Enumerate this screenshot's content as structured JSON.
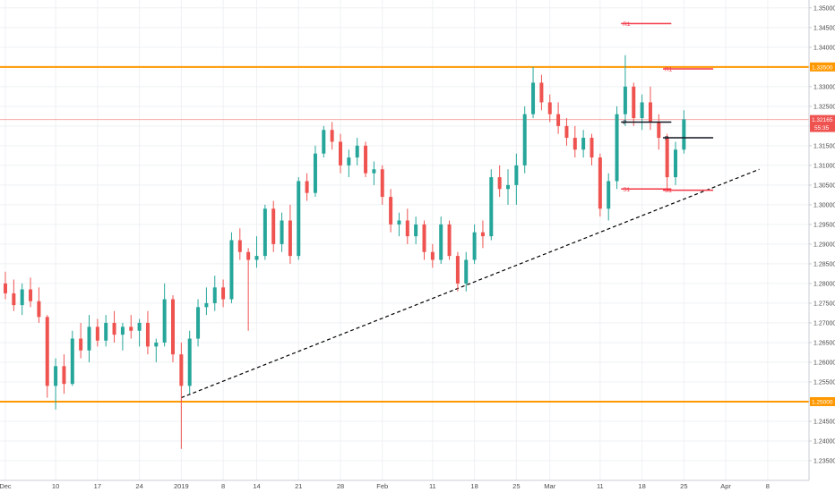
{
  "chart_data": {
    "type": "candlestick",
    "title": "",
    "xlabel": "",
    "ylabel": "",
    "ylim": [
      1.23,
      1.352
    ],
    "x_ticks": [
      {
        "label": "Dec",
        "i": 0
      },
      {
        "label": "10",
        "i": 6
      },
      {
        "label": "17",
        "i": 11
      },
      {
        "label": "24",
        "i": 16
      },
      {
        "label": "2019",
        "i": 21
      },
      {
        "label": "8",
        "i": 26
      },
      {
        "label": "14",
        "i": 30
      },
      {
        "label": "21",
        "i": 35
      },
      {
        "label": "28",
        "i": 40
      },
      {
        "label": "Feb",
        "i": 45
      },
      {
        "label": "11",
        "i": 51
      },
      {
        "label": "18",
        "i": 56
      },
      {
        "label": "25",
        "i": 61
      },
      {
        "label": "Mar",
        "i": 65
      },
      {
        "label": "11",
        "i": 71
      },
      {
        "label": "18",
        "i": 76
      },
      {
        "label": "25",
        "i": 81
      },
      {
        "label": "Apr",
        "i": 86
      },
      {
        "label": "8",
        "i": 91
      }
    ],
    "y_ticks": [
      "1.23500",
      "1.24000",
      "1.24500",
      "1.25000",
      "1.25500",
      "1.26000",
      "1.26500",
      "1.27000",
      "1.27500",
      "1.28000",
      "1.28500",
      "1.29000",
      "1.29500",
      "1.30000",
      "1.30500",
      "1.31000",
      "1.31500",
      "1.32000",
      "1.32500",
      "1.33000",
      "1.33500",
      "1.34000",
      "1.34500",
      "1.35000"
    ],
    "series": [
      {
        "type": "candlestick",
        "colors": {
          "up": "#26a69a",
          "down": "#ef5350"
        },
        "ohlc": [
          [
            1.28,
            1.283,
            1.276,
            1.2775
          ],
          [
            1.2775,
            1.281,
            1.273,
            1.2745
          ],
          [
            1.2745,
            1.28,
            1.272,
            1.2785
          ],
          [
            1.2785,
            1.2815,
            1.274,
            1.2755
          ],
          [
            1.2755,
            1.279,
            1.27,
            1.2715
          ],
          [
            1.2715,
            1.272,
            1.251,
            1.254
          ],
          [
            1.254,
            1.261,
            1.248,
            1.259
          ],
          [
            1.259,
            1.262,
            1.252,
            1.2545
          ],
          [
            1.2545,
            1.268,
            1.254,
            1.266
          ],
          [
            1.266,
            1.27,
            1.261,
            1.263
          ],
          [
            1.263,
            1.272,
            1.26,
            1.269
          ],
          [
            1.269,
            1.271,
            1.264,
            1.2655
          ],
          [
            1.2655,
            1.272,
            1.264,
            1.27
          ],
          [
            1.27,
            1.273,
            1.265,
            1.267
          ],
          [
            1.267,
            1.27,
            1.263,
            1.269
          ],
          [
            1.269,
            1.272,
            1.266,
            1.268
          ],
          [
            1.268,
            1.271,
            1.264,
            1.27
          ],
          [
            1.27,
            1.273,
            1.262,
            1.264
          ],
          [
            1.264,
            1.266,
            1.26,
            1.265
          ],
          [
            1.265,
            1.28,
            1.264,
            1.276
          ],
          [
            1.276,
            1.277,
            1.26,
            1.262
          ],
          [
            1.262,
            1.265,
            1.238,
            1.254
          ],
          [
            1.254,
            1.268,
            1.252,
            1.266
          ],
          [
            1.266,
            1.276,
            1.264,
            1.274
          ],
          [
            1.274,
            1.279,
            1.272,
            1.275
          ],
          [
            1.275,
            1.282,
            1.273,
            1.279
          ],
          [
            1.279,
            1.281,
            1.274,
            1.276
          ],
          [
            1.276,
            1.293,
            1.275,
            1.291
          ],
          [
            1.291,
            1.294,
            1.286,
            1.288
          ],
          [
            1.288,
            1.289,
            1.268,
            1.286
          ],
          [
            1.286,
            1.292,
            1.284,
            1.287
          ],
          [
            1.287,
            1.3,
            1.286,
            1.299
          ],
          [
            1.299,
            1.301,
            1.288,
            1.29
          ],
          [
            1.29,
            1.298,
            1.288,
            1.296
          ],
          [
            1.296,
            1.3,
            1.285,
            1.287
          ],
          [
            1.287,
            1.307,
            1.286,
            1.306
          ],
          [
            1.306,
            1.308,
            1.301,
            1.303
          ],
          [
            1.303,
            1.315,
            1.302,
            1.313
          ],
          [
            1.313,
            1.32,
            1.312,
            1.319
          ],
          [
            1.319,
            1.321,
            1.314,
            1.316
          ],
          [
            1.316,
            1.318,
            1.308,
            1.31
          ],
          [
            1.31,
            1.314,
            1.307,
            1.312
          ],
          [
            1.312,
            1.317,
            1.31,
            1.315
          ],
          [
            1.315,
            1.316,
            1.307,
            1.308
          ],
          [
            1.308,
            1.311,
            1.305,
            1.309
          ],
          [
            1.309,
            1.31,
            1.3,
            1.302
          ],
          [
            1.302,
            1.304,
            1.293,
            1.295
          ],
          [
            1.295,
            1.298,
            1.292,
            1.296
          ],
          [
            1.296,
            1.299,
            1.29,
            1.292
          ],
          [
            1.292,
            1.297,
            1.29,
            1.295
          ],
          [
            1.295,
            1.296,
            1.286,
            1.288
          ],
          [
            1.288,
            1.29,
            1.284,
            1.286
          ],
          [
            1.286,
            1.297,
            1.285,
            1.295
          ],
          [
            1.295,
            1.296,
            1.286,
            1.287
          ],
          [
            1.287,
            1.288,
            1.278,
            1.28
          ],
          [
            1.28,
            1.288,
            1.278,
            1.286
          ],
          [
            1.286,
            1.295,
            1.285,
            1.293
          ],
          [
            1.293,
            1.296,
            1.289,
            1.292
          ],
          [
            1.292,
            1.309,
            1.291,
            1.307
          ],
          [
            1.307,
            1.31,
            1.302,
            1.304
          ],
          [
            1.304,
            1.309,
            1.3,
            1.305
          ],
          [
            1.305,
            1.313,
            1.3,
            1.31
          ],
          [
            1.31,
            1.325,
            1.308,
            1.323
          ],
          [
            1.323,
            1.335,
            1.322,
            1.331
          ],
          [
            1.331,
            1.333,
            1.324,
            1.326
          ],
          [
            1.326,
            1.328,
            1.321,
            1.323
          ],
          [
            1.323,
            1.326,
            1.318,
            1.32
          ],
          [
            1.32,
            1.322,
            1.315,
            1.317
          ],
          [
            1.317,
            1.32,
            1.312,
            1.314
          ],
          [
            1.314,
            1.319,
            1.312,
            1.317
          ],
          [
            1.317,
            1.318,
            1.31,
            1.312
          ],
          [
            1.312,
            1.313,
            1.297,
            1.299
          ],
          [
            1.299,
            1.308,
            1.296,
            1.306
          ],
          [
            1.306,
            1.325,
            1.304,
            1.323
          ],
          [
            1.323,
            1.338,
            1.32,
            1.33
          ],
          [
            1.33,
            1.331,
            1.32,
            1.322
          ],
          [
            1.322,
            1.328,
            1.319,
            1.326
          ],
          [
            1.326,
            1.33,
            1.319,
            1.321
          ],
          [
            1.321,
            1.323,
            1.314,
            1.317
          ],
          [
            1.317,
            1.318,
            1.304,
            1.307
          ],
          [
            1.307,
            1.316,
            1.305,
            1.314
          ],
          [
            1.314,
            1.324,
            1.313,
            1.3217
          ]
        ]
      }
    ],
    "lines": [
      {
        "kind": "horizontal",
        "value": 1.335,
        "color": "#ff9800",
        "label": "1.33500"
      },
      {
        "kind": "horizontal",
        "value": 1.25,
        "color": "#ff9800",
        "label": "1.25000"
      },
      {
        "kind": "horizontal",
        "value": 1.32165,
        "color": "#f7a9a8",
        "label": "1.32165",
        "countdown": "55:35"
      },
      {
        "kind": "trendline",
        "from": [
          21,
          1.251
        ],
        "to": [
          90,
          1.309
        ],
        "style": "dashed",
        "color": "#000000"
      }
    ],
    "pivots": [
      {
        "label": "R1",
        "value": 1.346,
        "from": 73.5,
        "to": 79.5,
        "color": "#f23645"
      },
      {
        "label": "P",
        "value": 1.321,
        "from": 73.5,
        "to": 79.5,
        "color": "#131722"
      },
      {
        "label": "S1",
        "value": 1.304,
        "from": 73.5,
        "to": 79.5,
        "color": "#f23645"
      },
      {
        "label": "R1",
        "value": 1.3345,
        "from": 78.5,
        "to": 84.5,
        "color": "#f23645"
      },
      {
        "label": "P",
        "value": 1.317,
        "from": 78.5,
        "to": 84.5,
        "color": "#131722"
      },
      {
        "label": "S1",
        "value": 1.3037,
        "from": 78.5,
        "to": 84.5,
        "color": "#f23645"
      }
    ],
    "last_price_badge": {
      "value": "1.32165",
      "countdown": "55:35",
      "color": "#ef5350"
    },
    "level_badges": [
      {
        "value": "1.33500",
        "color": "#ff9800"
      },
      {
        "value": "1.25000",
        "color": "#ff9800"
      }
    ],
    "grid": true,
    "legend": "none"
  }
}
